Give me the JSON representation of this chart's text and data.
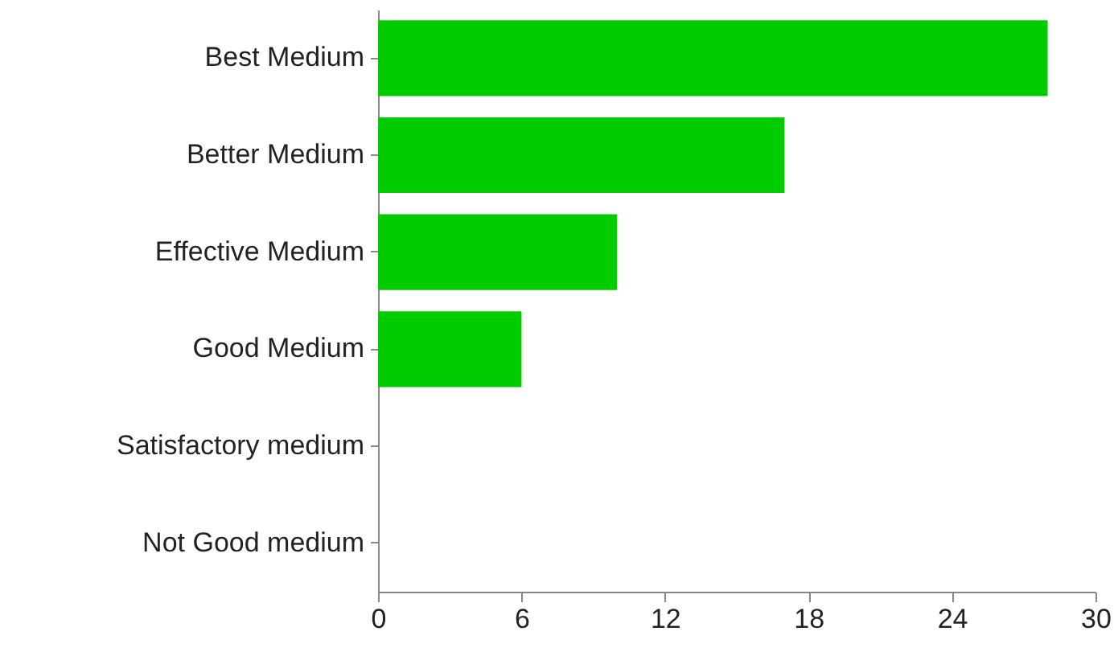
{
  "chart_data": {
    "type": "bar",
    "orientation": "horizontal",
    "categories": [
      "Best Medium",
      "Better Medium",
      "Effective Medium",
      "Good Medium",
      "Satisfactory medium",
      "Not Good medium"
    ],
    "values": [
      28,
      17,
      10,
      6,
      0,
      0
    ],
    "color": "#00cc00",
    "xlim": [
      0,
      30
    ],
    "xticks": [
      0,
      6,
      12,
      18,
      24,
      30
    ],
    "grid": false
  }
}
